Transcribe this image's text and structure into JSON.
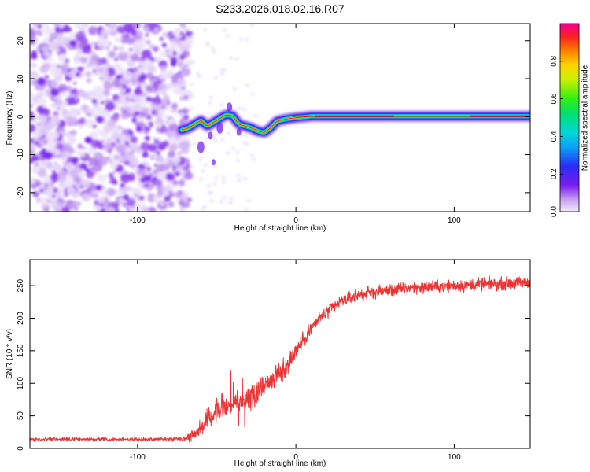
{
  "title": "S233.2026.018.02.16.R07",
  "chart_data": [
    {
      "type": "heatmap",
      "xlabel": "Height of straight line (km)",
      "ylabel": "Frequency (Hz)",
      "xlim": [
        -168,
        148
      ],
      "ylim": [
        -25,
        24.5
      ],
      "xticks": [
        -100,
        0,
        100
      ],
      "yticks": [
        -20,
        -10,
        0,
        10,
        20
      ],
      "ridge": {
        "x": [
          -72,
          -68,
          -64,
          -60,
          -56,
          -52,
          -48,
          -44,
          -40,
          -36,
          -32,
          -28,
          -24,
          -20,
          -16,
          -12,
          -8,
          -4,
          0,
          5,
          10,
          20,
          40,
          60,
          80,
          100,
          120,
          148
        ],
        "y": [
          -3.5,
          -3.0,
          -2.0,
          -1.0,
          -2.5,
          -1.5,
          -0.5,
          0.5,
          0.2,
          -2.0,
          -2.5,
          -3.0,
          -3.8,
          -4.2,
          -3.0,
          -1.2,
          -0.8,
          -0.5,
          -0.3,
          -0.1,
          0.1,
          0.1,
          0.1,
          0.1,
          0.1,
          0.1,
          0.1,
          0.1
        ]
      },
      "noise_region": [
        -168,
        -70
      ],
      "colorbar": {
        "label": "Normalized spectral amplitude",
        "range": [
          0.0,
          1.0
        ],
        "ticks": [
          "0.0",
          "0.2",
          "0.4",
          "0.6",
          "0.8"
        ]
      }
    },
    {
      "type": "line",
      "xlabel": "Height of straight line (km)",
      "ylabel": "SNR (10 * v/v)",
      "xlim": [
        -168,
        148
      ],
      "ylim": [
        0,
        290
      ],
      "xticks": [
        -100,
        0,
        100
      ],
      "yticks": [
        0,
        50,
        100,
        150,
        200,
        250
      ],
      "color": "#ee3333",
      "series": [
        {
          "name": "SNR",
          "x": [
            -168,
            -140,
            -110,
            -90,
            -70,
            -65,
            -60,
            -55,
            -50,
            -45,
            -40,
            -35,
            -30,
            -25,
            -20,
            -15,
            -10,
            -5,
            0,
            5,
            10,
            15,
            20,
            30,
            40,
            50,
            60,
            70,
            80,
            90,
            100,
            110,
            120,
            130,
            140,
            148
          ],
          "values": [
            14,
            14,
            14,
            14,
            15,
            22,
            32,
            45,
            60,
            65,
            68,
            72,
            78,
            88,
            98,
            105,
            115,
            130,
            150,
            168,
            185,
            200,
            210,
            228,
            236,
            240,
            243,
            246,
            248,
            249,
            250,
            251,
            252,
            253,
            254,
            254
          ],
          "noise": [
            4,
            4,
            4,
            4,
            6,
            14,
            18,
            22,
            24,
            26,
            28,
            30,
            30,
            28,
            28,
            26,
            24,
            22,
            22,
            20,
            18,
            16,
            16,
            14,
            14,
            14,
            14,
            14,
            14,
            14,
            14,
            14,
            14,
            14,
            14,
            14
          ]
        }
      ]
    }
  ]
}
